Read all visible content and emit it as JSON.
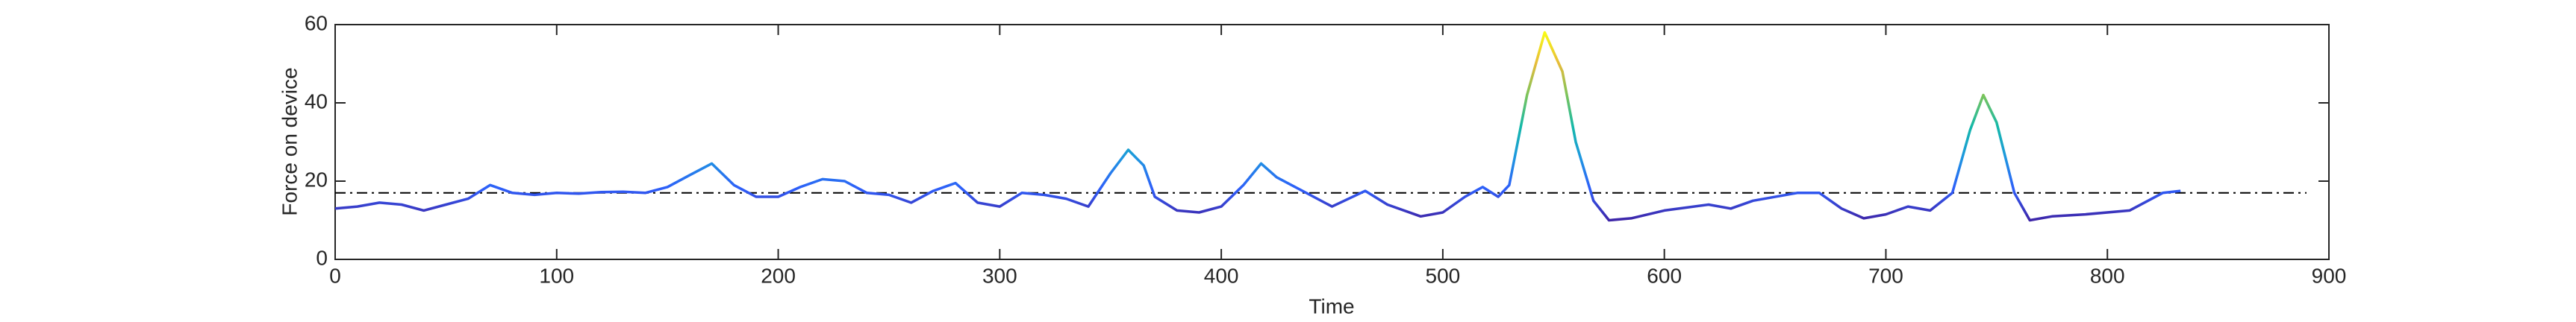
{
  "chart_data": {
    "type": "line",
    "xlabel": "Time",
    "ylabel": "Force on device",
    "x": [
      0,
      10,
      20,
      30,
      40,
      50,
      60,
      70,
      80,
      90,
      100,
      110,
      120,
      130,
      140,
      150,
      160,
      170,
      180,
      190,
      200,
      210,
      220,
      230,
      240,
      250,
      260,
      270,
      280,
      290,
      300,
      310,
      320,
      330,
      340,
      350,
      358,
      365,
      370,
      380,
      390,
      400,
      410,
      418,
      425,
      435,
      450,
      465,
      475,
      490,
      500,
      510,
      518,
      525,
      530,
      538,
      546,
      554,
      560,
      568,
      575,
      585,
      600,
      620,
      630,
      640,
      660,
      670,
      680,
      690,
      700,
      710,
      720,
      730,
      738,
      744,
      750,
      758,
      765,
      775,
      790,
      810,
      825,
      833
    ],
    "values": [
      13,
      13.5,
      14.5,
      14,
      12.5,
      14,
      15.5,
      19,
      17,
      16.5,
      17,
      16.8,
      17.2,
      17.3,
      17,
      18.5,
      21.5,
      24.5,
      19,
      16,
      16,
      18.5,
      20.5,
      20,
      17,
      16.5,
      14.5,
      17.5,
      19.5,
      14.5,
      13.5,
      17,
      16.5,
      15.5,
      13.5,
      22,
      28,
      24,
      16,
      12.5,
      12,
      13.5,
      19,
      24.5,
      21,
      18,
      13.5,
      17.5,
      14,
      11,
      12,
      16,
      18.5,
      16,
      19,
      42,
      58,
      48,
      30,
      15,
      10,
      10.5,
      12.5,
      14,
      13,
      15,
      17,
      17,
      13,
      10.5,
      11.5,
      13.5,
      12.5,
      17,
      33,
      42,
      35,
      17,
      10,
      11,
      11.5,
      12.5,
      17,
      17.5
    ],
    "colormap": [
      "#3e26a8",
      "#2e5ef9",
      "#1e97e0",
      "#14b9a8",
      "#7cc45a",
      "#e6bb3a",
      "#f9fb15"
    ],
    "reference_line": 17,
    "xlim": [
      0,
      900
    ],
    "xticks": [
      0,
      100,
      200,
      300,
      400,
      500,
      600,
      700,
      800,
      900
    ],
    "ylim": [
      0,
      60
    ],
    "yticks": [
      0,
      20,
      40,
      60
    ]
  }
}
